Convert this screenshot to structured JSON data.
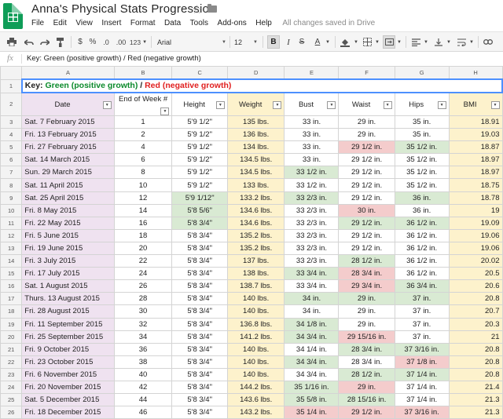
{
  "header": {
    "title": "Anna's Physical Stats Progression",
    "icons": [
      "star-icon",
      "folder-icon",
      "sheets-logo"
    ],
    "menu": [
      "File",
      "Edit",
      "View",
      "Insert",
      "Format",
      "Data",
      "Tools",
      "Add-ons",
      "Help"
    ],
    "save_status": "All changes saved in Drive"
  },
  "toolbar": {
    "currency": "$",
    "percent": "%",
    "dec_less": ".0",
    "dec_more": ".00",
    "num_format": "123",
    "font": "Arial",
    "font_size": "12",
    "bold": "B",
    "italic": "I",
    "strike": "S",
    "text_color": "A"
  },
  "formula": {
    "fx": "fx",
    "value": "Key: Green (positive growth) / Red (negative growth)"
  },
  "columns": [
    "A",
    "B",
    "C",
    "D",
    "E",
    "F",
    "G",
    "H"
  ],
  "key_row": {
    "prefix": "Key: ",
    "green": "Green (positive growth)",
    "sep": " / ",
    "red": "Red (negative growth)"
  },
  "table_headers": [
    "Date",
    "End of Week #",
    "Height",
    "Weight",
    "Bust",
    "Waist",
    "Hips",
    "BMI"
  ],
  "rows": [
    {
      "n": "3",
      "date": "Sat. 7 February 2015",
      "week": "1",
      "height": "5'9 1/2\"",
      "weight": "135 lbs.",
      "bust": "33 in.",
      "waist": "29 in.",
      "hips": "35 in.",
      "bmi": "18.91",
      "hc": "",
      "bc": "",
      "wc": "",
      "hic": ""
    },
    {
      "n": "4",
      "date": "Fri. 13 February 2015",
      "week": "2",
      "height": "5'9 1/2\"",
      "weight": "136 lbs.",
      "bust": "33 in.",
      "waist": "29 in.",
      "hips": "35 in.",
      "bmi": "19.03",
      "hc": "",
      "bc": "",
      "wc": "",
      "hic": ""
    },
    {
      "n": "5",
      "date": "Fri. 27 February 2015",
      "week": "4",
      "height": "5'9 1/2\"",
      "weight": "134 lbs.",
      "bust": "33 in.",
      "waist": "29 1/2 in.",
      "hips": "35 1/2 in.",
      "bmi": "18.87",
      "hc": "",
      "bc": "",
      "wc": "red",
      "hic": "grn"
    },
    {
      "n": "6",
      "date": "Sat. 14 March 2015",
      "week": "6",
      "height": "5'9 1/2\"",
      "weight": "134.5 lbs.",
      "bust": "33 in.",
      "waist": "29 1/2 in.",
      "hips": "35 1/2 in.",
      "bmi": "18.97",
      "hc": "",
      "bc": "",
      "wc": "",
      "hic": ""
    },
    {
      "n": "7",
      "date": "Sun. 29 March 2015",
      "week": "8",
      "height": "5'9 1/2\"",
      "weight": "134.5 lbs.",
      "bust": "33 1/2 in.",
      "waist": "29 1/2 in.",
      "hips": "35 1/2 in.",
      "bmi": "18.97",
      "hc": "",
      "bc": "grn",
      "wc": "",
      "hic": ""
    },
    {
      "n": "8",
      "date": "Sat. 11 April 2015",
      "week": "10",
      "height": "5'9 1/2\"",
      "weight": "133 lbs.",
      "bust": "33 1/2 in.",
      "waist": "29 1/2 in.",
      "hips": "35 1/2 in.",
      "bmi": "18.75",
      "hc": "",
      "bc": "",
      "wc": "",
      "hic": ""
    },
    {
      "n": "9",
      "date": "Sat. 25 April 2015",
      "week": "12",
      "height": "5'9 1/12\"",
      "weight": "133.2 lbs.",
      "bust": "33 2/3 in.",
      "waist": "29 1/2 in.",
      "hips": "36 in.",
      "bmi": "18.78",
      "hc": "grn",
      "bc": "grn",
      "wc": "",
      "hic": "grn"
    },
    {
      "n": "10",
      "date": "Fri. 8 May 2015",
      "week": "14",
      "height": "5'8 5/6\"",
      "weight": "134.6 lbs.",
      "bust": "33 2/3 in.",
      "waist": "30 in.",
      "hips": "36 in.",
      "bmi": "19",
      "hc": "grn",
      "bc": "",
      "wc": "red",
      "hic": ""
    },
    {
      "n": "11",
      "date": "Fri. 22 May 2015",
      "week": "16",
      "height": "5'8 3/4\"",
      "weight": "134.6 lbs.",
      "bust": "33 2/3 in.",
      "waist": "29 1/2 in.",
      "hips": "36 1/2 in.",
      "bmi": "19.09",
      "hc": "grn",
      "bc": "",
      "wc": "grn",
      "hic": "grn"
    },
    {
      "n": "12",
      "date": "Fri. 5 June 2015",
      "week": "18",
      "height": "5'8 3/4\"",
      "weight": "135.2 lbs.",
      "bust": "33 2/3 in.",
      "waist": "29 1/2 in.",
      "hips": "36 1/2 in.",
      "bmi": "19.06",
      "hc": "",
      "bc": "",
      "wc": "",
      "hic": ""
    },
    {
      "n": "13",
      "date": "Fri. 19 June 2015",
      "week": "20",
      "height": "5'8 3/4\"",
      "weight": "135.2 lbs.",
      "bust": "33 2/3 in.",
      "waist": "29 1/2 in.",
      "hips": "36 1/2 in.",
      "bmi": "19.06",
      "hc": "",
      "bc": "",
      "wc": "",
      "hic": ""
    },
    {
      "n": "14",
      "date": "Fri. 3 July 2015",
      "week": "22",
      "height": "5'8 3/4\"",
      "weight": "137 lbs.",
      "bust": "33 2/3 in.",
      "waist": "28 1/2 in.",
      "hips": "36 1/2 in.",
      "bmi": "20.02",
      "hc": "",
      "bc": "",
      "wc": "grn",
      "hic": ""
    },
    {
      "n": "15",
      "date": "Fri. 17 July 2015",
      "week": "24",
      "height": "5'8 3/4\"",
      "weight": "138 lbs.",
      "bust": "33 3/4 in.",
      "waist": "28 3/4 in.",
      "hips": "36 1/2 in.",
      "bmi": "20.5",
      "hc": "",
      "bc": "grn",
      "wc": "red",
      "hic": ""
    },
    {
      "n": "16",
      "date": "Sat. 1 August 2015",
      "week": "26",
      "height": "5'8 3/4\"",
      "weight": "138.7 lbs.",
      "bust": "33 3/4 in.",
      "waist": "29 3/4 in.",
      "hips": "36 3/4 in.",
      "bmi": "20.6",
      "hc": "",
      "bc": "",
      "wc": "red",
      "hic": "grn"
    },
    {
      "n": "17",
      "date": "Thurs. 13 August 2015",
      "week": "28",
      "height": "5'8 3/4\"",
      "weight": "140 lbs.",
      "bust": "34 in.",
      "waist": "29 in.",
      "hips": "37 in.",
      "bmi": "20.8",
      "hc": "",
      "bc": "grn",
      "wc": "grn",
      "hic": "grn"
    },
    {
      "n": "18",
      "date": "Fri. 28 August 2015",
      "week": "30",
      "height": "5'8 3/4\"",
      "weight": "140 lbs.",
      "bust": "34 in.",
      "waist": "29 in.",
      "hips": "37 in.",
      "bmi": "20.7",
      "hc": "",
      "bc": "",
      "wc": "",
      "hic": ""
    },
    {
      "n": "19",
      "date": "Fri. 11 September 2015",
      "week": "32",
      "height": "5'8 3/4\"",
      "weight": "136.8 lbs.",
      "bust": "34 1/8 in.",
      "waist": "29 in.",
      "hips": "37 in.",
      "bmi": "20.3",
      "hc": "",
      "bc": "grn",
      "wc": "",
      "hic": ""
    },
    {
      "n": "20",
      "date": "Fri. 25 September 2015",
      "week": "34",
      "height": "5'8 3/4\"",
      "weight": "141.2 lbs.",
      "bust": "34 3/4 in.",
      "waist": "29 15/16 in.",
      "hips": "37 in.",
      "bmi": "21",
      "hc": "",
      "bc": "grn",
      "wc": "red",
      "hic": ""
    },
    {
      "n": "21",
      "date": "Fri. 9 October 2015",
      "week": "36",
      "height": "5'8 3/4\"",
      "weight": "140 lbs.",
      "bust": "34 1/4 in.",
      "waist": "28 3/4 in.",
      "hips": "37 3/16 in.",
      "bmi": "20.8",
      "hc": "",
      "bc": "",
      "wc": "grn",
      "hic": "grn"
    },
    {
      "n": "22",
      "date": "Fri. 23 October 2015",
      "week": "38",
      "height": "5'8 3/4\"",
      "weight": "140 lbs.",
      "bust": "34 3/4 in.",
      "waist": "28 3/4 in.",
      "hips": "37 1/8 in.",
      "bmi": "20.8",
      "hc": "",
      "bc": "grn",
      "wc": "",
      "hic": "red"
    },
    {
      "n": "23",
      "date": "Fri. 6 November 2015",
      "week": "40",
      "height": "5'8 3/4\"",
      "weight": "140 lbs.",
      "bust": "34 3/4 in.",
      "waist": "28 1/2 in.",
      "hips": "37 1/4 in.",
      "bmi": "20.8",
      "hc": "",
      "bc": "",
      "wc": "grn",
      "hic": "grn"
    },
    {
      "n": "24",
      "date": "Fri. 20 November 2015",
      "week": "42",
      "height": "5'8 3/4\"",
      "weight": "144.2 lbs.",
      "bust": "35 1/16 in.",
      "waist": "29 in.",
      "hips": "37 1/4 in.",
      "bmi": "21.4",
      "hc": "",
      "bc": "grn",
      "wc": "red",
      "hic": ""
    },
    {
      "n": "25",
      "date": "Sat. 5 December 2015",
      "week": "44",
      "height": "5'8 3/4\"",
      "weight": "143.6 lbs.",
      "bust": "35 5/8 in.",
      "waist": "28 15/16 in.",
      "hips": "37 1/4 in.",
      "bmi": "21.3",
      "hc": "",
      "bc": "grn",
      "wc": "grn",
      "hic": ""
    },
    {
      "n": "26",
      "date": "Fri. 18 December 2015",
      "week": "46",
      "height": "5'8 3/4\"",
      "weight": "143.2 lbs.",
      "bust": "35 1/4 in.",
      "waist": "29 1/2 in.",
      "hips": "37 3/16 in.",
      "bmi": "21.3",
      "hc": "",
      "bc": "red",
      "wc": "red",
      "hic": "red"
    }
  ]
}
